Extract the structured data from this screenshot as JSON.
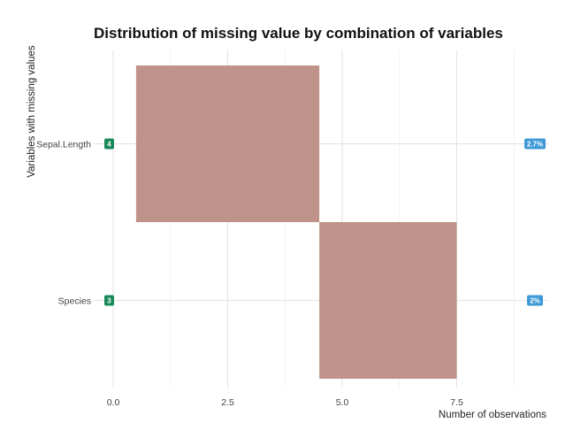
{
  "chart_data": {
    "type": "bar",
    "title": "Distribution of missing value by combination of variables",
    "xlabel": "Number of observations",
    "ylabel": "Variables with missing values",
    "xlim": [
      0,
      9
    ],
    "x_ticks": [
      0,
      2.5,
      5,
      7.5
    ],
    "x_tick_labels": [
      "0.0",
      "2.5",
      "5.0",
      "7.5"
    ],
    "grid": true,
    "categories": [
      "Sepal.Length",
      "Species"
    ],
    "segments": [
      {
        "category": "Sepal.Length",
        "start": 0.5,
        "end": 4.5,
        "count_label": "4",
        "pct_label": "2.7%"
      },
      {
        "category": "Species",
        "start": 4.5,
        "end": 7.5,
        "count_label": "3",
        "pct_label": "2%"
      }
    ],
    "colors": {
      "bar": "#bf9389",
      "count_badge": "#1a8a5a",
      "pct_badge": "#3d9ad6"
    }
  }
}
